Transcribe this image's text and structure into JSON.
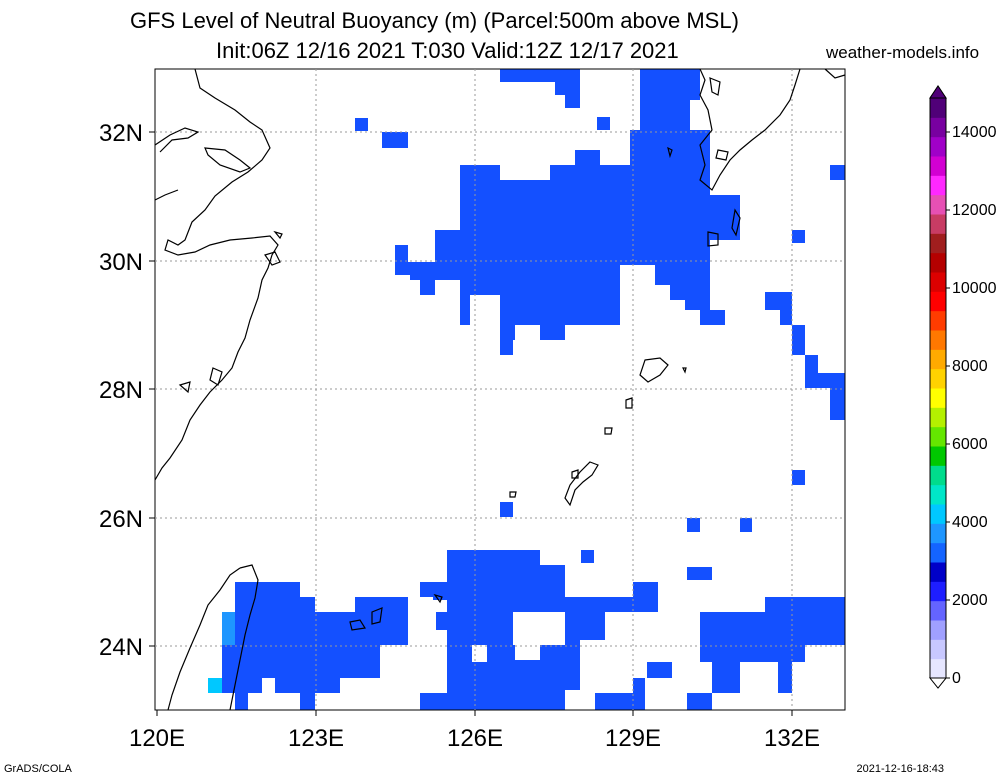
{
  "title_line1": "GFS Level of Neutral Buoyancy (m) (Parcel:500m above MSL)",
  "title_line2": "Init:06Z 12/16 2021 T:030 Valid:12Z 12/17 2021",
  "site": "weather-models.info",
  "footer_left": "GrADS/COLA",
  "footer_right": "2021-12-16-18:43",
  "lon_ticks": [
    "120E",
    "123E",
    "126E",
    "129E",
    "132E"
  ],
  "lat_ticks": [
    "32N",
    "30N",
    "28N",
    "26N",
    "24N"
  ],
  "colorbar": {
    "labels": [
      "0",
      "2000",
      "4000",
      "6000",
      "8000",
      "10000",
      "12000",
      "14000"
    ],
    "colors": [
      "#e6e6ff",
      "#c8c8ff",
      "#a0a0ff",
      "#6464ff",
      "#1e1eff",
      "#0000c8",
      "#1464ff",
      "#1e96ff",
      "#00c8ff",
      "#00e6c8",
      "#00dc8c",
      "#00c800",
      "#64e600",
      "#b4f000",
      "#ffff00",
      "#ffd200",
      "#ffaa00",
      "#ff7800",
      "#ff3c00",
      "#ff0000",
      "#dc0000",
      "#b40000",
      "#a01e1e",
      "#c83c64",
      "#e650b4",
      "#ff28ff",
      "#d200d2",
      "#a000c8",
      "#7800a0",
      "#500078"
    ]
  }
}
